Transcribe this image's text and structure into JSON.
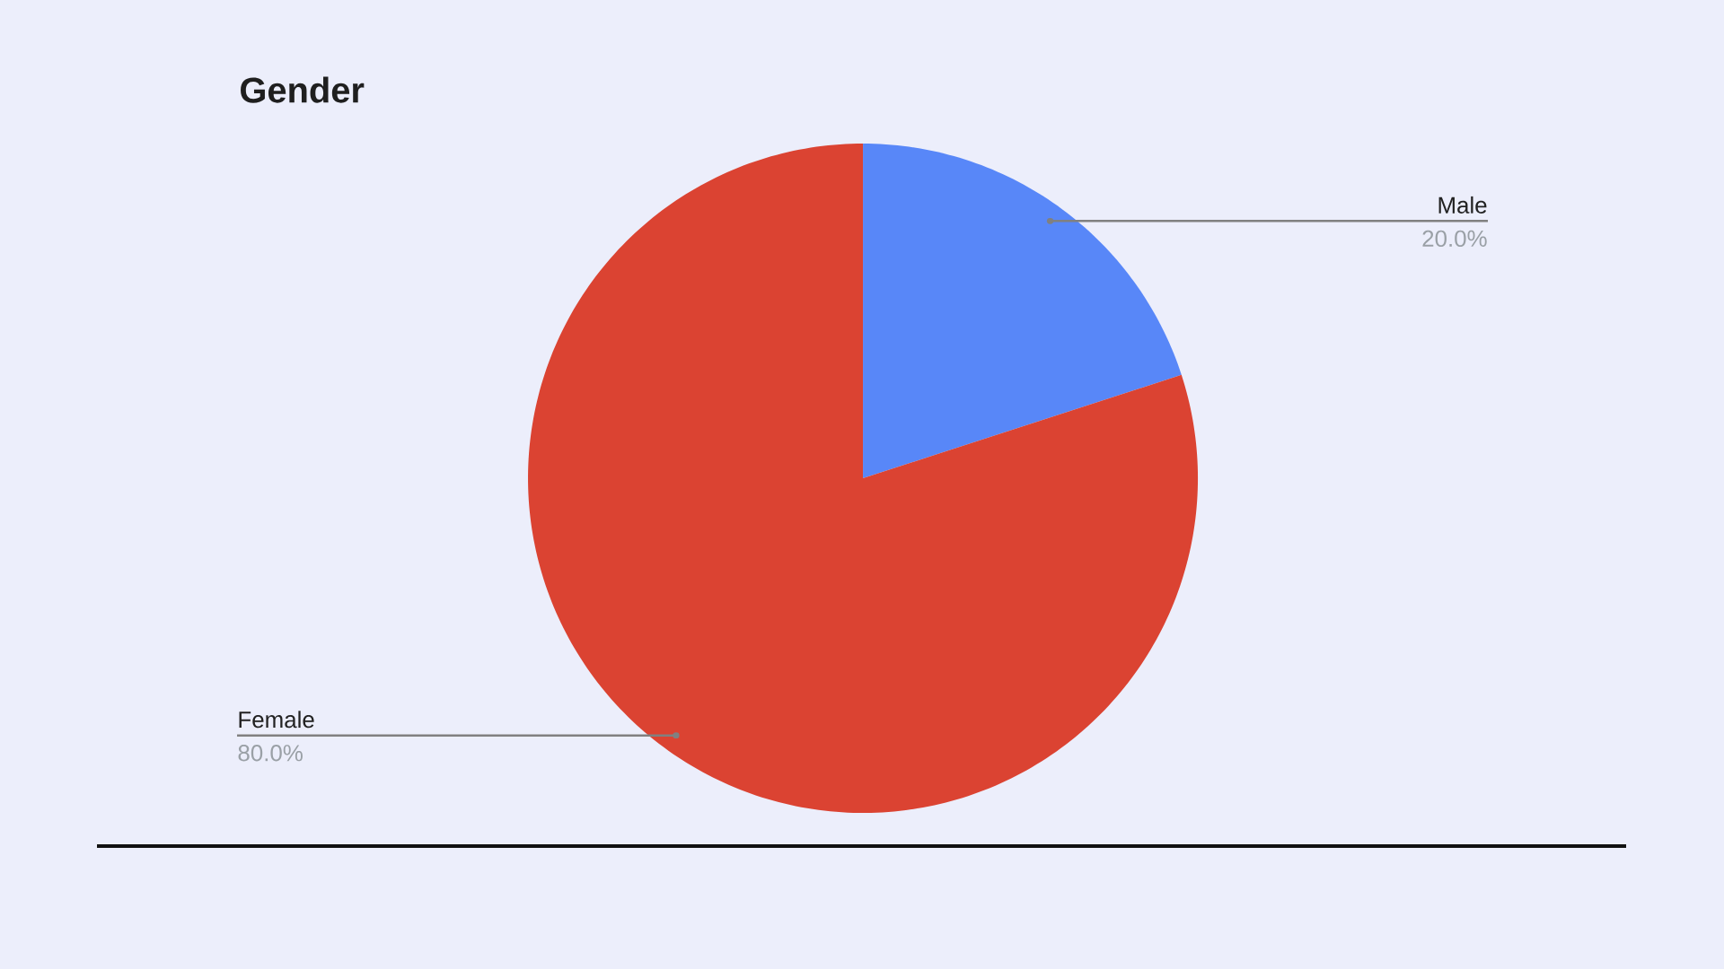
{
  "chart_data": {
    "type": "pie",
    "title": "Gender",
    "categories": [
      "Male",
      "Female"
    ],
    "values": [
      20,
      80
    ],
    "colors": [
      "#5887f8",
      "#db4332"
    ],
    "value_labels": [
      "20.0%",
      "80.0%"
    ]
  }
}
